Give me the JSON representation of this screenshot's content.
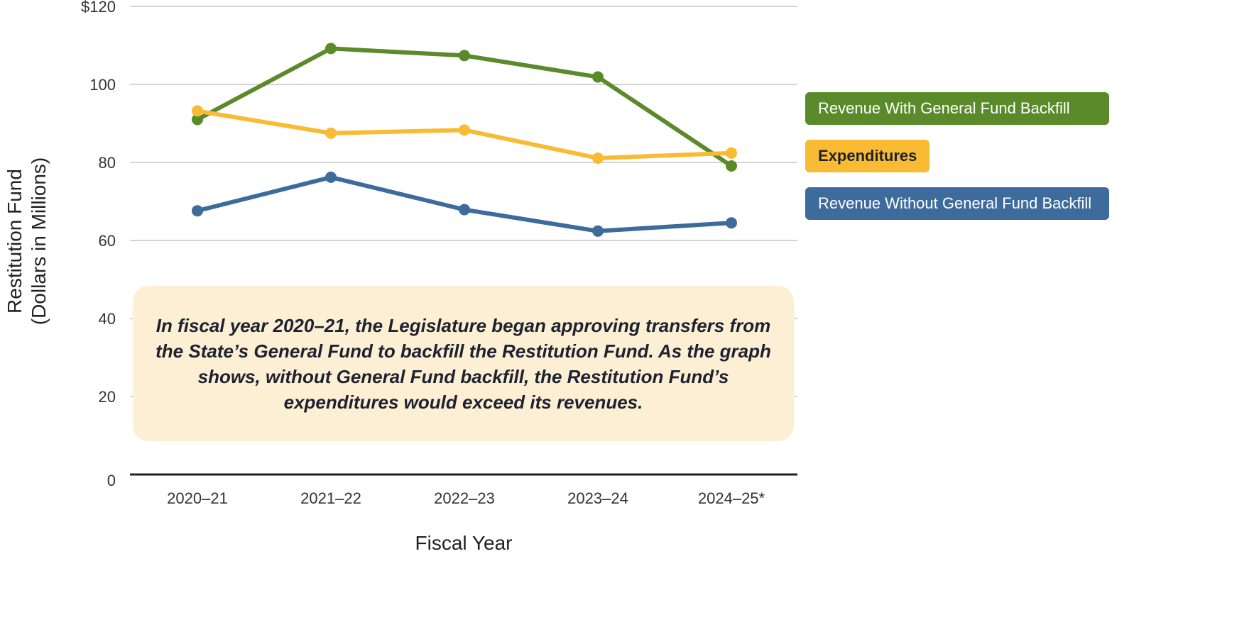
{
  "chart_data": {
    "type": "line",
    "title": "",
    "xlabel": "Fiscal Year",
    "ylabel": [
      "Restitution Fund",
      "(Dollars in Millions)"
    ],
    "ylim": [
      0,
      120
    ],
    "yticks": [
      "0",
      "20",
      "40",
      "60",
      "80",
      "100",
      "$120"
    ],
    "ytick_values": [
      0,
      20,
      40,
      60,
      80,
      100,
      120
    ],
    "grid": true,
    "legend_placement": "right",
    "categories": [
      "2020–21",
      "2021–22",
      "2022–23",
      "2023–24",
      "2024–25*"
    ],
    "series": [
      {
        "name": "Revenue With General Fund Backfill",
        "color": "#5a8a2a",
        "values": [
          91,
          109.2,
          107.4,
          101.9,
          79.1
        ]
      },
      {
        "name": "Expenditures",
        "color": "#f9bb34",
        "values": [
          93.2,
          87.5,
          88.3,
          81.1,
          82.4
        ]
      },
      {
        "name": "Revenue Without General Fund Backfill",
        "color": "#3d6b9c",
        "values": [
          67.6,
          76.2,
          67.9,
          62.4,
          64.5
        ]
      }
    ],
    "annotation": "In fiscal year 2020–21, the Legislature began approving transfers from the State’s General Fund to backfill the Restitution Fund. As the graph shows, without General Fund backfill, the Restitution Fund’s expenditures would exceed its revenues."
  }
}
